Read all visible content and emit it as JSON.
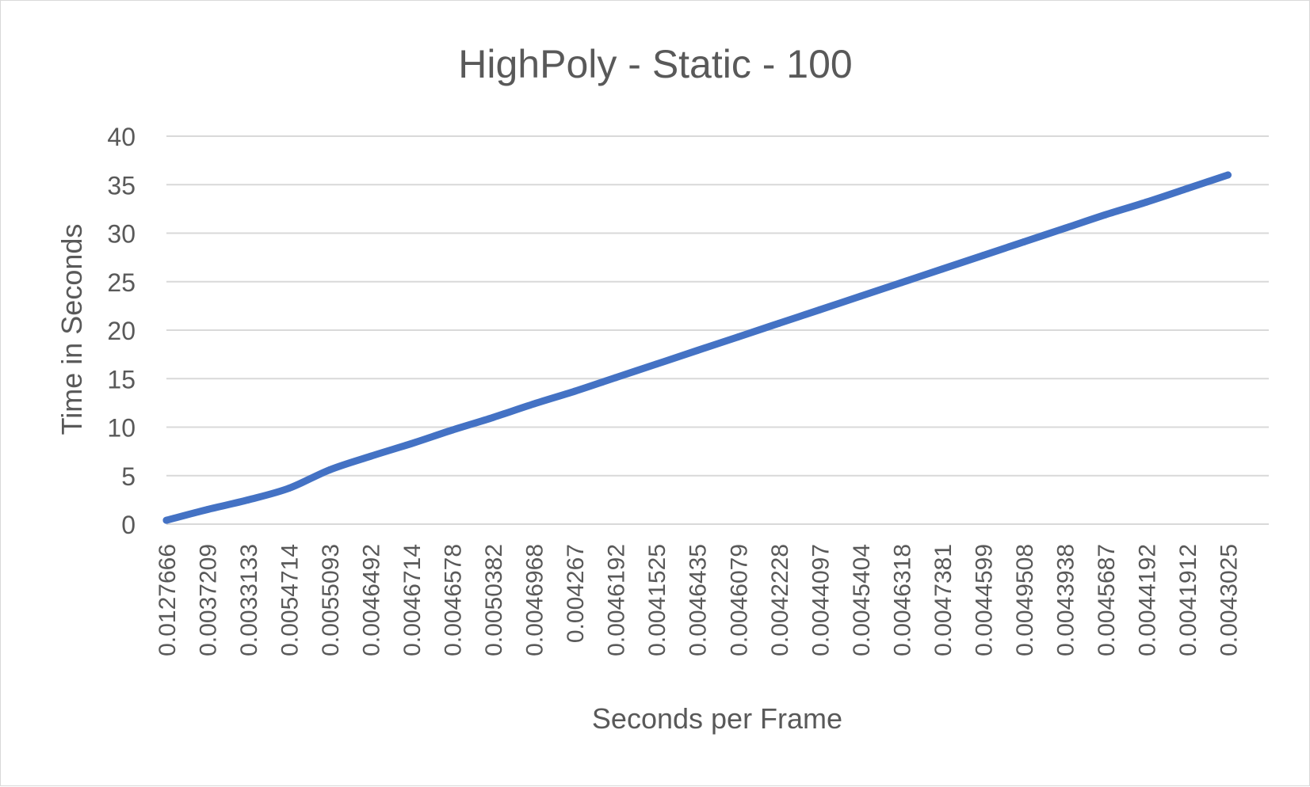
{
  "chart_data": {
    "type": "line",
    "title": "HighPoly - Static - 100",
    "xlabel": "Seconds per Frame",
    "ylabel": "Time in Seconds",
    "ylim": [
      0,
      40
    ],
    "y_ticks": [
      0,
      5,
      10,
      15,
      20,
      25,
      30,
      35,
      40
    ],
    "grid": true,
    "legend": "none",
    "x_tick_labels": [
      "0.0127666",
      "0.0037209",
      "0.0033133",
      "0.0054714",
      "0.0055093",
      "0.0046492",
      "0.0046714",
      "0.0046578",
      "0.0050382",
      "0.0046968",
      "0.004267",
      "0.0046192",
      "0.0041525",
      "0.0046435",
      "0.0046079",
      "0.0042228",
      "0.0044097",
      "0.0045404",
      "0.0046318",
      "0.0047381",
      "0.0044599",
      "0.0049508",
      "0.0043938",
      "0.0045687",
      "0.0044192",
      "0.0041912",
      "0.0043025"
    ],
    "series": [
      {
        "color": "#4472c4",
        "values": [
          0.4,
          1.5,
          2.5,
          3.7,
          5.6,
          7.0,
          8.3,
          9.7,
          11.0,
          12.4,
          13.7,
          15.1,
          16.5,
          17.9,
          19.3,
          20.7,
          22.1,
          23.5,
          24.9,
          26.3,
          27.7,
          29.1,
          30.5,
          31.9,
          33.2,
          34.6,
          36.0
        ]
      }
    ]
  }
}
